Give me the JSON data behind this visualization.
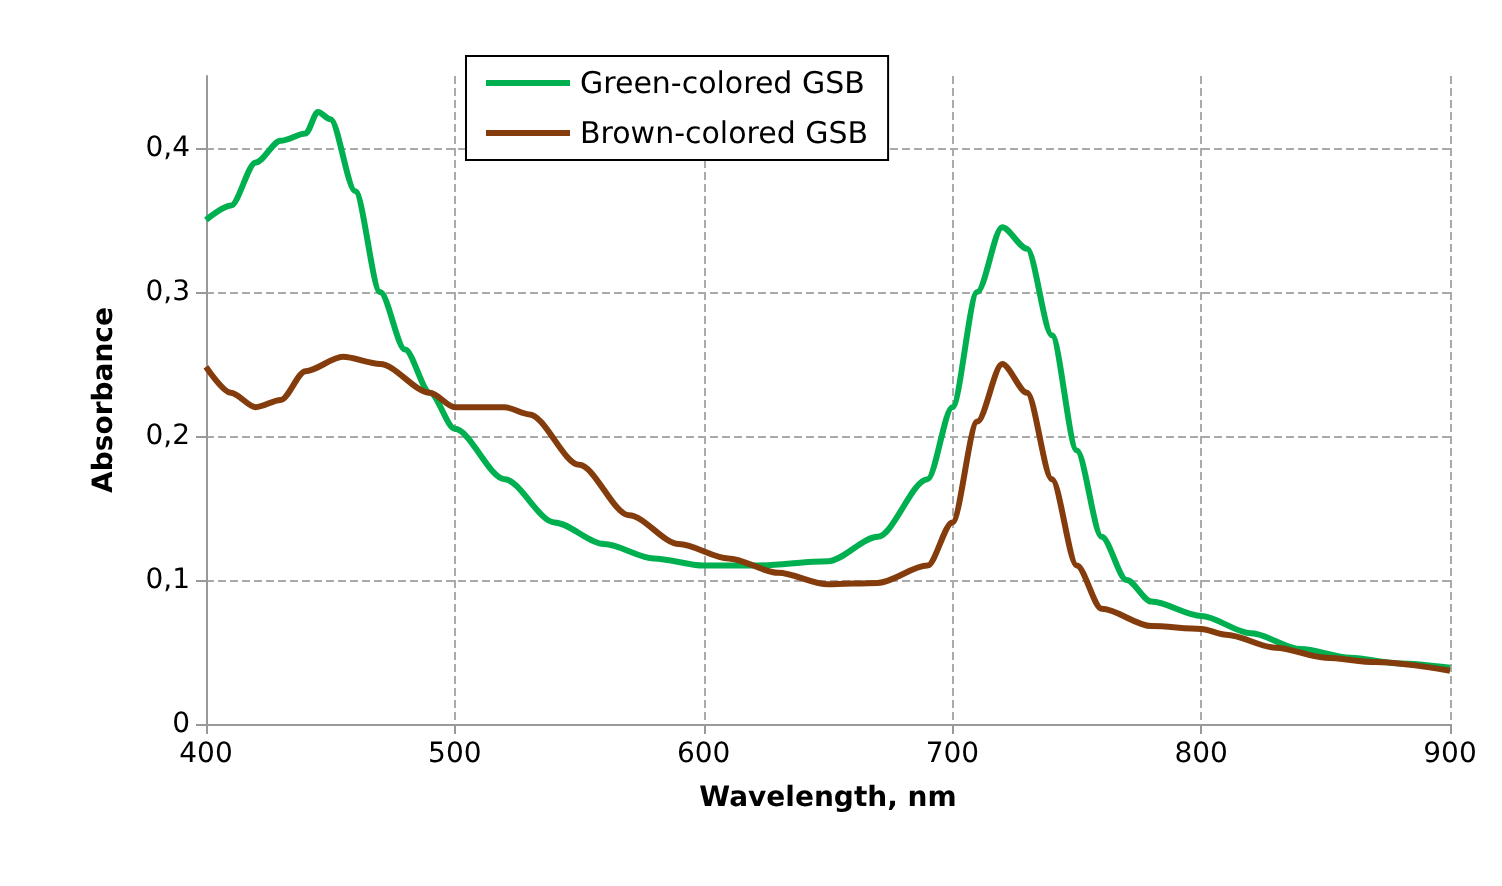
{
  "chart_data": {
    "type": "line",
    "xlabel": "Wavelength, nm",
    "ylabel": "Absorbance",
    "xlim": [
      400,
      900
    ],
    "xticks": [
      400,
      500,
      600,
      700,
      800,
      900
    ],
    "ylim": [
      0,
      0.45
    ],
    "yticks": [
      {
        "value": 0,
        "label": "0"
      },
      {
        "value": 0.1,
        "label": "0,1"
      },
      {
        "value": 0.2,
        "label": "0,2"
      },
      {
        "value": 0.3,
        "label": "0,3"
      },
      {
        "value": 0.4,
        "label": "0,4"
      }
    ],
    "grid": true,
    "legend": "top",
    "marker": "none",
    "line_style": "solid",
    "series": [
      {
        "name": "Green-colored GSB",
        "color": "#00b050",
        "x": [
          400,
          410,
          420,
          430,
          440,
          445,
          450,
          460,
          470,
          480,
          490,
          500,
          520,
          540,
          560,
          580,
          600,
          620,
          650,
          670,
          690,
          700,
          710,
          720,
          730,
          740,
          750,
          760,
          770,
          780,
          800,
          820,
          840,
          860,
          880,
          900
        ],
        "values": [
          0.35,
          0.36,
          0.39,
          0.405,
          0.41,
          0.425,
          0.42,
          0.37,
          0.3,
          0.26,
          0.23,
          0.205,
          0.17,
          0.14,
          0.125,
          0.115,
          0.11,
          0.11,
          0.113,
          0.13,
          0.17,
          0.22,
          0.3,
          0.345,
          0.33,
          0.27,
          0.19,
          0.13,
          0.1,
          0.085,
          0.075,
          0.063,
          0.052,
          0.046,
          0.042,
          0.039
        ]
      },
      {
        "name": "Brown-colored GSB",
        "color": "#843c0c",
        "x": [
          400,
          410,
          420,
          430,
          440,
          455,
          470,
          490,
          500,
          520,
          530,
          550,
          570,
          590,
          610,
          630,
          650,
          670,
          690,
          700,
          710,
          720,
          730,
          740,
          750,
          760,
          780,
          800,
          810,
          830,
          850,
          870,
          900
        ],
        "values": [
          0.248,
          0.23,
          0.22,
          0.225,
          0.245,
          0.255,
          0.25,
          0.23,
          0.22,
          0.22,
          0.215,
          0.18,
          0.145,
          0.125,
          0.115,
          0.105,
          0.097,
          0.098,
          0.11,
          0.14,
          0.21,
          0.25,
          0.23,
          0.17,
          0.11,
          0.08,
          0.068,
          0.066,
          0.062,
          0.053,
          0.046,
          0.043,
          0.037
        ]
      }
    ]
  }
}
